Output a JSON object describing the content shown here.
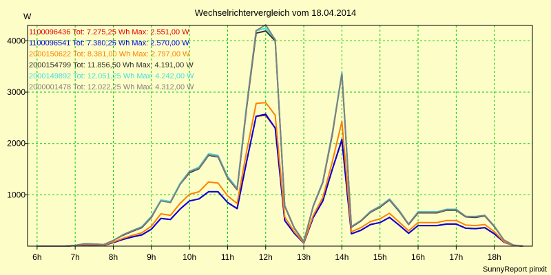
{
  "chart_data": {
    "type": "line",
    "title": "Wechselrichtervergleich vom 18.04.2014",
    "ylabel": "W",
    "xlabel": "",
    "footer": "SunnyReport pinxit",
    "ylim": [
      0,
      4300
    ],
    "xlim": [
      5.75,
      19.0
    ],
    "yticks": [
      1000,
      2000,
      3000,
      4000
    ],
    "ytick_labels": [
      "1000",
      "2000",
      "3000",
      "4000"
    ],
    "xticks": [
      6,
      7,
      8,
      9,
      10,
      11,
      12,
      13,
      14,
      15,
      16,
      17,
      18
    ],
    "xtick_labels": [
      "6h",
      "7h",
      "8h",
      "9h",
      "10h",
      "11h",
      "12h",
      "13h",
      "14h",
      "15h",
      "16h",
      "17h",
      "18h"
    ],
    "x": [
      6.0,
      6.25,
      6.5,
      6.75,
      7.0,
      7.25,
      7.5,
      7.75,
      8.0,
      8.25,
      8.5,
      8.75,
      9.0,
      9.25,
      9.5,
      9.75,
      10.0,
      10.25,
      10.5,
      10.75,
      11.0,
      11.25,
      11.5,
      11.75,
      12.0,
      12.25,
      12.5,
      12.75,
      13.0,
      13.25,
      13.5,
      13.75,
      14.0,
      14.25,
      14.5,
      14.75,
      15.0,
      15.25,
      15.5,
      15.75,
      16.0,
      16.25,
      16.5,
      16.75,
      17.0,
      17.25,
      17.5,
      17.75,
      18.0,
      18.25,
      18.5,
      18.75
    ],
    "series": [
      {
        "name": "1100096436",
        "legend": "1100096436 Tot: 7.275,25 Wh Max: 2.551,00 W",
        "color": "#e00000",
        "values": [
          0,
          0,
          0,
          0,
          10,
          25,
          20,
          15,
          70,
          130,
          180,
          220,
          330,
          540,
          520,
          720,
          880,
          920,
          1060,
          1060,
          850,
          730,
          1650,
          2530,
          2551,
          2300,
          500,
          250,
          60,
          560,
          880,
          1500,
          2060,
          240,
          310,
          420,
          460,
          560,
          410,
          250,
          400,
          400,
          400,
          430,
          430,
          350,
          340,
          360,
          240,
          80,
          15,
          0
        ]
      },
      {
        "name": "1100096541",
        "legend": "1100096541 Tot: 7.380,25 Wh Max: 2.570,00 W",
        "color": "#0000e0",
        "values": [
          0,
          0,
          0,
          0,
          10,
          25,
          20,
          15,
          70,
          130,
          180,
          220,
          330,
          540,
          520,
          720,
          880,
          920,
          1060,
          1060,
          850,
          730,
          1650,
          2530,
          2570,
          2300,
          500,
          250,
          60,
          560,
          880,
          1500,
          2080,
          240,
          310,
          420,
          460,
          560,
          410,
          250,
          400,
          400,
          400,
          430,
          430,
          350,
          340,
          360,
          240,
          80,
          15,
          0
        ]
      },
      {
        "name": "2000150622",
        "legend": "2000150622 Tot: 8.381,00 Wh Max: 2.797,00 W",
        "color": "#ff8000",
        "values": [
          0,
          0,
          0,
          0,
          10,
          30,
          25,
          20,
          80,
          150,
          210,
          260,
          390,
          630,
          600,
          830,
          1010,
          1060,
          1250,
          1230,
          980,
          830,
          1850,
          2780,
          2797,
          2550,
          570,
          280,
          70,
          600,
          950,
          1650,
          2430,
          280,
          360,
          480,
          530,
          640,
          470,
          300,
          460,
          460,
          460,
          500,
          500,
          410,
          400,
          420,
          280,
          90,
          15,
          0
        ]
      },
      {
        "name": "2000154799",
        "legend": "2000154799 Tot: 11.856,50 Wh Max: 4.191,00 W",
        "color": "#303030",
        "values": [
          0,
          0,
          0,
          0,
          15,
          45,
          40,
          30,
          110,
          210,
          290,
          360,
          560,
          890,
          850,
          1200,
          1430,
          1510,
          1770,
          1740,
          1330,
          1100,
          2700,
          4150,
          4191,
          4000,
          780,
          350,
          90,
          780,
          1240,
          2180,
          3380,
          370,
          490,
          660,
          760,
          900,
          680,
          420,
          650,
          650,
          650,
          700,
          700,
          570,
          560,
          590,
          380,
          120,
          20,
          0
        ]
      },
      {
        "name": "2000149892",
        "legend": "2000149892 Tot: 12.051,25 Wh Max: 4.242,00 W",
        "color": "#40e0e0",
        "values": [
          0,
          0,
          0,
          0,
          15,
          45,
          40,
          30,
          110,
          220,
          300,
          380,
          580,
          900,
          870,
          1220,
          1460,
          1540,
          1800,
          1770,
          1360,
          1130,
          2750,
          4200,
          4242,
          4030,
          790,
          360,
          90,
          790,
          1260,
          2220,
          3380,
          380,
          500,
          680,
          780,
          920,
          700,
          430,
          670,
          670,
          670,
          720,
          720,
          580,
          580,
          600,
          390,
          120,
          20,
          0
        ]
      },
      {
        "name": "2000001478",
        "legend": "2000001478 Tot: 12.022,25 Wh Max: 4.312,00 W",
        "color": "#808080",
        "values": [
          0,
          0,
          0,
          0,
          15,
          45,
          40,
          30,
          110,
          220,
          300,
          370,
          570,
          880,
          850,
          1200,
          1450,
          1520,
          1780,
          1750,
          1340,
          1110,
          2720,
          4200,
          4312,
          4020,
          790,
          360,
          90,
          790,
          1250,
          2200,
          3350,
          380,
          500,
          670,
          770,
          910,
          690,
          430,
          660,
          660,
          660,
          710,
          710,
          580,
          570,
          600,
          390,
          120,
          20,
          0
        ]
      }
    ]
  }
}
